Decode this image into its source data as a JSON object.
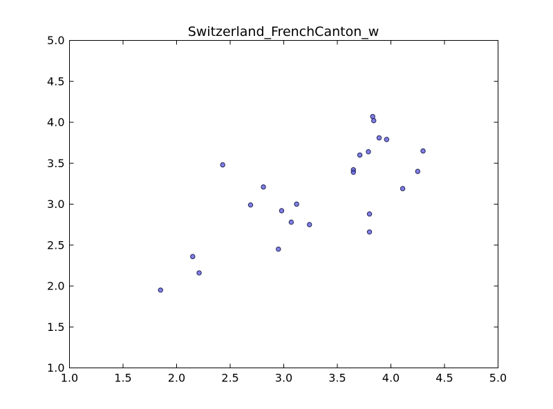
{
  "chart_data": {
    "type": "scatter",
    "title": "Switzerland_FrenchCanton_w",
    "xlabel": "",
    "ylabel": "",
    "xlim": [
      1.0,
      5.0
    ],
    "ylim": [
      1.0,
      5.0
    ],
    "xticks": [
      "1.0",
      "1.5",
      "2.0",
      "2.5",
      "3.0",
      "3.5",
      "4.0",
      "4.5",
      "5.0"
    ],
    "yticks": [
      "1.0",
      "1.5",
      "2.0",
      "2.5",
      "3.0",
      "3.5",
      "4.0",
      "4.5",
      "5.0"
    ],
    "grid": false,
    "marker_color": "#5555dd",
    "points": [
      {
        "x": 1.85,
        "y": 1.95
      },
      {
        "x": 2.15,
        "y": 2.36
      },
      {
        "x": 2.21,
        "y": 2.16
      },
      {
        "x": 2.43,
        "y": 3.48
      },
      {
        "x": 2.69,
        "y": 2.99
      },
      {
        "x": 2.81,
        "y": 3.21
      },
      {
        "x": 2.95,
        "y": 2.45
      },
      {
        "x": 2.98,
        "y": 2.92
      },
      {
        "x": 3.07,
        "y": 2.78
      },
      {
        "x": 3.12,
        "y": 3.0
      },
      {
        "x": 3.24,
        "y": 2.75
      },
      {
        "x": 3.65,
        "y": 3.42
      },
      {
        "x": 3.65,
        "y": 3.39
      },
      {
        "x": 3.71,
        "y": 3.6
      },
      {
        "x": 3.79,
        "y": 3.64
      },
      {
        "x": 3.8,
        "y": 2.88
      },
      {
        "x": 3.8,
        "y": 2.66
      },
      {
        "x": 3.83,
        "y": 4.07
      },
      {
        "x": 3.84,
        "y": 4.02
      },
      {
        "x": 3.89,
        "y": 3.81
      },
      {
        "x": 3.96,
        "y": 3.79
      },
      {
        "x": 4.11,
        "y": 3.19
      },
      {
        "x": 4.25,
        "y": 3.4
      },
      {
        "x": 4.3,
        "y": 3.65
      }
    ]
  }
}
